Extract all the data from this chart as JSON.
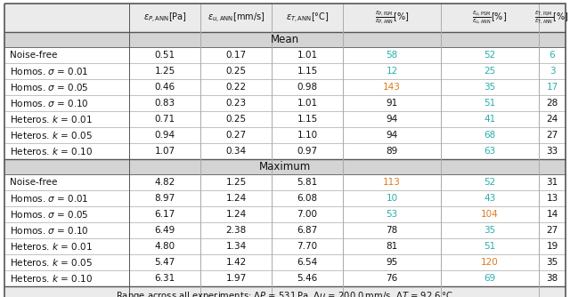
{
  "row_labels": [
    "Noise-free",
    "Homos. $\\sigma$ = 0.01",
    "Homos. $\\sigma$ = 0.05",
    "Homos. $\\sigma$ = 0.10",
    "Heteros. $k$ = 0.01",
    "Heteros. $k$ = 0.05",
    "Heteros. $k$ = 0.10"
  ],
  "mean_data": [
    [
      "0.51",
      "0.17",
      "1.01",
      "58",
      "52",
      "6"
    ],
    [
      "1.25",
      "0.25",
      "1.15",
      "12",
      "25",
      "3"
    ],
    [
      "0.46",
      "0.22",
      "0.98",
      "143",
      "35",
      "17"
    ],
    [
      "0.83",
      "0.23",
      "1.01",
      "91",
      "51",
      "28"
    ],
    [
      "0.71",
      "0.25",
      "1.15",
      "94",
      "41",
      "24"
    ],
    [
      "0.94",
      "0.27",
      "1.10",
      "94",
      "68",
      "27"
    ],
    [
      "1.07",
      "0.34",
      "0.97",
      "89",
      "63",
      "33"
    ]
  ],
  "max_data": [
    [
      "4.82",
      "1.25",
      "5.81",
      "113",
      "52",
      "31"
    ],
    [
      "8.97",
      "1.24",
      "6.08",
      "10",
      "43",
      "13"
    ],
    [
      "6.17",
      "1.24",
      "7.00",
      "53",
      "104",
      "14"
    ],
    [
      "6.49",
      "2.38",
      "6.87",
      "78",
      "35",
      "27"
    ],
    [
      "4.80",
      "1.34",
      "7.70",
      "81",
      "51",
      "19"
    ],
    [
      "5.47",
      "1.42",
      "6.54",
      "95",
      "120",
      "35"
    ],
    [
      "6.31",
      "1.97",
      "5.46",
      "76",
      "69",
      "38"
    ]
  ],
  "mean_colors": [
    [
      "k",
      "k",
      "k",
      "teal",
      "teal",
      "teal"
    ],
    [
      "k",
      "k",
      "k",
      "teal",
      "teal",
      "teal"
    ],
    [
      "k",
      "k",
      "k",
      "orange",
      "teal",
      "teal"
    ],
    [
      "k",
      "k",
      "k",
      "k",
      "teal",
      "k"
    ],
    [
      "k",
      "k",
      "k",
      "k",
      "teal",
      "k"
    ],
    [
      "k",
      "k",
      "k",
      "k",
      "teal",
      "k"
    ],
    [
      "k",
      "k",
      "k",
      "k",
      "teal",
      "k"
    ]
  ],
  "max_colors": [
    [
      "k",
      "k",
      "k",
      "orange",
      "teal",
      "k"
    ],
    [
      "k",
      "k",
      "k",
      "teal",
      "teal",
      "k"
    ],
    [
      "k",
      "k",
      "k",
      "teal",
      "orange",
      "k"
    ],
    [
      "k",
      "k",
      "k",
      "k",
      "teal",
      "k"
    ],
    [
      "k",
      "k",
      "k",
      "k",
      "teal",
      "k"
    ],
    [
      "k",
      "k",
      "k",
      "k",
      "orange",
      "k"
    ],
    [
      "k",
      "k",
      "k",
      "k",
      "teal",
      "k"
    ]
  ],
  "teal": "#2aaeae",
  "orange": "#e07820",
  "bg_gray_light": "#ebebeb",
  "bg_section": "#d4d4d4",
  "border_dark": "#555555",
  "border_light": "#aaaaaa",
  "font_color": "#111111",
  "footer_text": "Range across all experiments: $\\Delta P$ = 531\\,Pa, $\\Delta u$ = 200.0\\,mm/s, $\\Delta T$ = 92.6\\,°C"
}
